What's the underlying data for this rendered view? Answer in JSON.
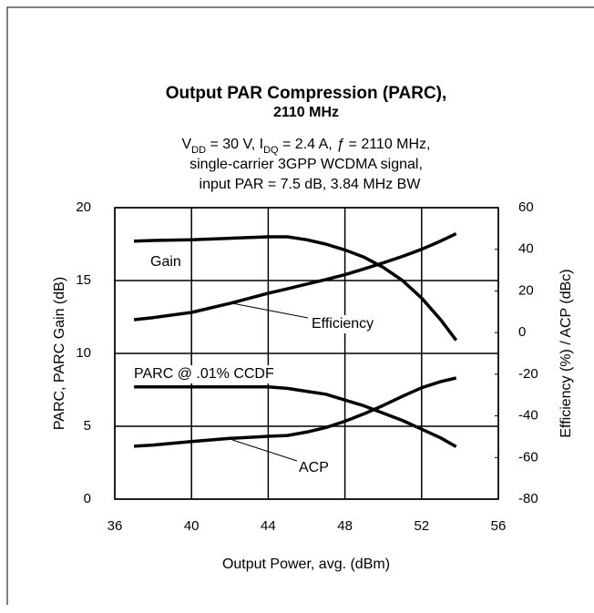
{
  "chart_data": {
    "type": "line",
    "title": [
      "Output PAR Compression (PARC),",
      "2110 MHz"
    ],
    "subtitle_line1": [
      {
        "text": "V"
      },
      {
        "text": "DD",
        "sub": true
      },
      {
        "text": " = 30 V, I"
      },
      {
        "text": "DQ",
        "sub": true
      },
      {
        "text": " = 2.4 A, "
      },
      {
        "text": "ƒ",
        "italic": true
      },
      {
        "text": " = 2110 MHz,"
      }
    ],
    "subtitle_lines": [
      "single-carrier 3GPP WCDMA signal,",
      "input PAR = 7.5 dB, 3.84 MHz BW"
    ],
    "xlabel": "Output Power, avg. (dBm)",
    "ylabel": "PARC, PARC Gain (dB)",
    "y2label": "Efficiency (%) / ACP (dBc)",
    "x": [
      37,
      38,
      40,
      42,
      44,
      45,
      46,
      47,
      48,
      49,
      50,
      51,
      52,
      53,
      53.8
    ],
    "series": [
      {
        "name": "Gain",
        "color": "#000000",
        "values": [
          17.7,
          17.75,
          17.8,
          17.9,
          18.0,
          18.0,
          17.8,
          17.5,
          17.1,
          16.6,
          15.9,
          15.0,
          13.8,
          12.3,
          10.9
        ]
      },
      {
        "name": "Efficiency",
        "color": "#000000",
        "axis": "y2",
        "values": [
          6.2,
          7.2,
          9.7,
          14,
          18.9,
          21,
          23.3,
          25.5,
          27.8,
          30.6,
          33.5,
          36.6,
          40,
          44,
          47.5
        ]
      },
      {
        "name": "PARC @ .01% CCDF",
        "color": "#000000",
        "values": [
          7.7,
          7.7,
          7.7,
          7.7,
          7.7,
          7.6,
          7.4,
          7.2,
          6.8,
          6.4,
          5.9,
          5.4,
          4.8,
          4.2,
          3.6
        ]
      },
      {
        "name": "ACP",
        "color": "#000000",
        "axis": "y2",
        "values": [
          -54.6,
          -54,
          -52.3,
          -50.8,
          -49.8,
          -49.4,
          -47.8,
          -45.6,
          -42.6,
          -39,
          -35,
          -30.6,
          -26.5,
          -23.5,
          -21.8
        ]
      }
    ],
    "xlim": [
      36,
      56
    ],
    "xticks": [
      36,
      40,
      44,
      48,
      52,
      56
    ],
    "ylim": [
      0,
      20
    ],
    "yticks": [
      0,
      5,
      10,
      15,
      20
    ],
    "y2lim": [
      -80,
      60
    ],
    "y2ticks": [
      -80,
      -60,
      -40,
      -20,
      0,
      20,
      40,
      60
    ],
    "grid": true
  }
}
